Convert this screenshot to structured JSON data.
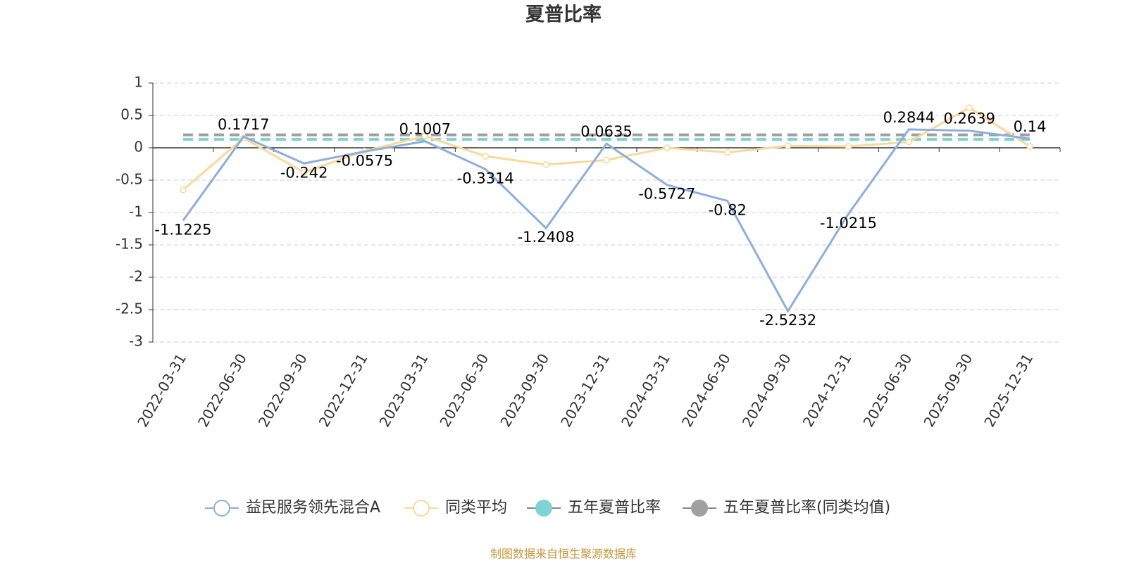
{
  "chart_data": {
    "type": "line",
    "title": "夏普比率",
    "categories": [
      "2022-03-31",
      "2022-06-30",
      "2022-09-30",
      "2022-12-31",
      "2023-03-31",
      "2023-06-30",
      "2023-09-30",
      "2023-12-31",
      "2024-03-31",
      "2024-06-30",
      "2024-09-30",
      "2024-12-31",
      "2025-06-30",
      "2025-09-30",
      "2025-12-31"
    ],
    "series": [
      {
        "name": "益民服务领先混合A",
        "color": "#8eaedc",
        "style": "line-labeled",
        "values": [
          -1.1225,
          0.1717,
          -0.242,
          -0.0575,
          0.1007,
          -0.3314,
          -1.2408,
          0.0635,
          -0.5727,
          -0.82,
          -2.5232,
          -1.0215,
          0.2844,
          0.2639,
          0.14
        ]
      },
      {
        "name": "同类平均",
        "color": "#fbd89a",
        "style": "line-marker",
        "values": [
          -0.65,
          0.15,
          -0.38,
          -0.05,
          0.18,
          -0.13,
          -0.26,
          -0.19,
          0.0,
          -0.07,
          0.03,
          0.02,
          0.09,
          0.62,
          0.02
        ]
      },
      {
        "name": "五年夏普比率",
        "color": "#7fd3d3",
        "style": "dashed",
        "values": [
          0.13,
          0.13,
          0.13,
          0.13,
          0.13,
          0.13,
          0.13,
          0.13,
          0.13,
          0.13,
          0.13,
          0.13,
          0.13,
          0.13,
          0.13
        ]
      },
      {
        "name": "五年夏普比率(同类均值)",
        "color": "#a0a0a0",
        "style": "dashed",
        "values": [
          0.2,
          0.2,
          0.2,
          0.2,
          0.2,
          0.2,
          0.2,
          0.2,
          0.2,
          0.2,
          0.2,
          0.2,
          0.2,
          0.2,
          0.2
        ]
      }
    ],
    "ylim": [
      -3,
      1
    ],
    "yticks": [
      1,
      0.5,
      0,
      -0.5,
      -1,
      -1.5,
      -2,
      -2.5,
      -3
    ],
    "grid": true,
    "legend": "bottom",
    "source": "制图数据来自恒生聚源数据库"
  }
}
